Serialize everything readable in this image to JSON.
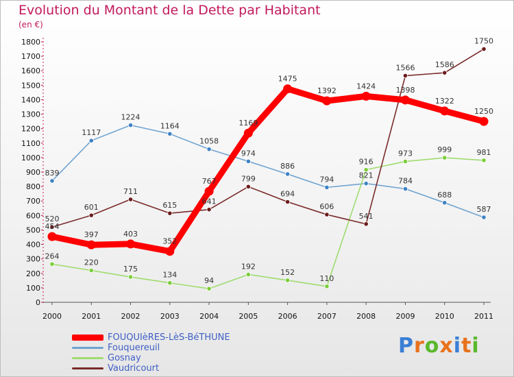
{
  "title": "Evolution du Montant de la Dette par Habitant",
  "unit": "(en €)",
  "brand": {
    "letters": [
      {
        "ch": "P",
        "color": "#3a7fd5"
      },
      {
        "ch": "r",
        "color": "#e8721c"
      },
      {
        "ch": "o",
        "color": "#5ab82c"
      },
      {
        "ch": "x",
        "color": "#e8721c"
      },
      {
        "ch": "i",
        "color": "#3a7fd5"
      },
      {
        "ch": "t",
        "color": "#e8721c"
      },
      {
        "ch": "i",
        "color": "#5ab82c"
      }
    ]
  },
  "chart_data": {
    "type": "line",
    "x": [
      "2000",
      "2001",
      "2002",
      "2003",
      "2004",
      "2005",
      "2006",
      "2007",
      "2008",
      "2009",
      "2010",
      "2011"
    ],
    "y_ticks": [
      0,
      100,
      200,
      300,
      400,
      500,
      600,
      700,
      800,
      900,
      1000,
      1100,
      1200,
      1300,
      1400,
      1500,
      1600,
      1700,
      1800
    ],
    "ylim": [
      0,
      1800
    ],
    "series": [
      {
        "name": "FOUQUIèRES-LèS-BéTHUNE",
        "color": "#ff0000",
        "marker": "#ff0000",
        "strong": true,
        "values": [
          454,
          397,
          403,
          352,
          767,
          1169,
          1475,
          1392,
          1424,
          1398,
          1322,
          1250
        ]
      },
      {
        "name": "Fouquereuil",
        "color": "#6fa3d0",
        "marker": "#3f82c4",
        "strong": false,
        "values": [
          839,
          1117,
          1224,
          1164,
          1058,
          974,
          886,
          794,
          821,
          784,
          688,
          587
        ]
      },
      {
        "name": "Gosnay",
        "color": "#9fdc6f",
        "marker": "#7ccd3a",
        "strong": false,
        "values": [
          264,
          220,
          175,
          134,
          94,
          192,
          152,
          110,
          916,
          973,
          999,
          981
        ]
      },
      {
        "name": "Vaudricourt",
        "color": "#7a2a2a",
        "marker": "#6b1c1c",
        "strong": false,
        "values": [
          520,
          601,
          711,
          615,
          641,
          799,
          694,
          606,
          541,
          1566,
          1586,
          1750
        ]
      }
    ],
    "legend_position": "bottom-left",
    "grid": false
  }
}
